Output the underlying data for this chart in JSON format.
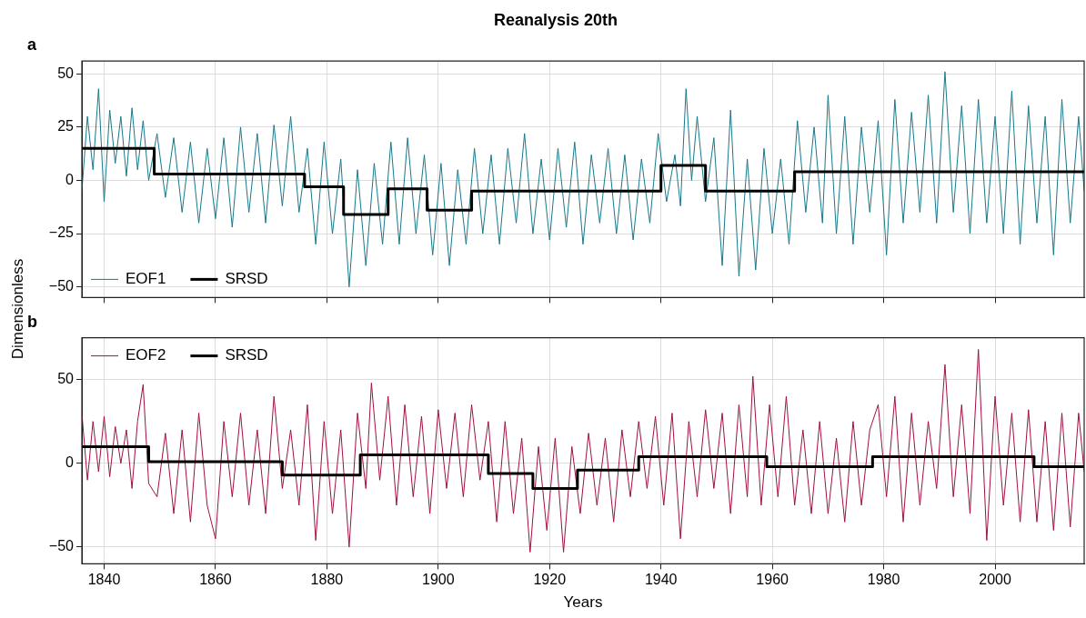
{
  "chart_data": [
    {
      "type": "line",
      "title": "Reanalysis 20th",
      "subtitle": "a",
      "ylabel": "Dimensionless",
      "xlim": [
        1836,
        2016
      ],
      "xticks": [
        1840,
        1860,
        1880,
        1900,
        1920,
        1940,
        1960,
        1980,
        2000
      ],
      "ylim": [
        -55,
        56
      ],
      "yticks": [
        -50,
        -25,
        0,
        25,
        50
      ],
      "grid": true,
      "legend": "bottom left",
      "tick_labels": "y",
      "marker": "none",
      "series": [
        {
          "name": "EOF1",
          "color": "#17788a",
          "x": [
            1836,
            1837,
            1838,
            1839,
            1840,
            1841,
            1842,
            1843,
            1844,
            1845,
            1846,
            1847,
            1848,
            1849.5,
            1851,
            1852.5,
            1854,
            1855.5,
            1857,
            1858.5,
            1860,
            1861.5,
            1863,
            1864.5,
            1866,
            1867.5,
            1869,
            1870.5,
            1872,
            1873.5,
            1875,
            1876.5,
            1878,
            1879.5,
            1881,
            1882.5,
            1884,
            1885.5,
            1887,
            1888.5,
            1890,
            1891.5,
            1893,
            1894.5,
            1896,
            1897.5,
            1899,
            1900.5,
            1902,
            1903.5,
            1905,
            1906.5,
            1908,
            1909.5,
            1911,
            1912.5,
            1914,
            1915.5,
            1917,
            1918.5,
            1920,
            1921.5,
            1923,
            1924.5,
            1926,
            1927.5,
            1929,
            1930.5,
            1932,
            1933.5,
            1935,
            1936.5,
            1938,
            1939.5,
            1941,
            1942.5,
            1943.5,
            1944.5,
            1945.5,
            1946.5,
            1948,
            1949.5,
            1951,
            1952.5,
            1954,
            1955.5,
            1957,
            1958.5,
            1960,
            1961.5,
            1963,
            1964.5,
            1966,
            1967.5,
            1969,
            1970,
            1971.5,
            1973,
            1974.5,
            1976,
            1977.5,
            1979,
            1980.5,
            1982,
            1983.5,
            1985,
            1986.5,
            1988,
            1989.5,
            1991,
            1992.5,
            1994,
            1995.5,
            1997,
            1998.5,
            2000,
            2001.5,
            2003,
            2004.5,
            2006,
            2007.5,
            2009,
            2010.5,
            2012,
            2013.5,
            2015,
            2016
          ],
          "values": [
            -5,
            30,
            5,
            43,
            -10,
            33,
            8,
            30,
            2,
            34,
            5,
            28,
            0,
            22,
            -8,
            20,
            -15,
            18,
            -20,
            15,
            -18,
            20,
            -22,
            25,
            -15,
            22,
            -20,
            26,
            -12,
            30,
            -15,
            15,
            -30,
            18,
            -25,
            10,
            -50,
            5,
            -40,
            8,
            -30,
            18,
            -30,
            20,
            -25,
            12,
            -35,
            8,
            -40,
            5,
            -30,
            15,
            -25,
            12,
            -30,
            15,
            -20,
            22,
            -25,
            10,
            -28,
            15,
            -22,
            18,
            -30,
            12,
            -20,
            15,
            -25,
            12,
            -28,
            10,
            -20,
            22,
            -10,
            12,
            -12,
            43,
            0,
            30,
            -10,
            20,
            -40,
            33,
            -45,
            10,
            -42,
            15,
            -25,
            10,
            -30,
            28,
            -15,
            25,
            -20,
            40,
            -25,
            30,
            -30,
            25,
            -15,
            28,
            -35,
            38,
            -20,
            32,
            -15,
            40,
            -20,
            51,
            -15,
            35,
            -25,
            38,
            -20,
            30,
            -25,
            42,
            -30,
            35,
            -20,
            30,
            -35,
            38,
            -20,
            30,
            -5
          ]
        },
        {
          "name": "SRSD",
          "type": "step",
          "color": "#000000",
          "x": [
            1836,
            1849,
            1876,
            1883,
            1891,
            1898,
            1906,
            1940,
            1948,
            1964,
            2016
          ],
          "values": [
            15,
            3,
            -3,
            -16,
            -4,
            -14,
            -5,
            7,
            -5,
            4,
            4
          ]
        }
      ]
    },
    {
      "type": "line",
      "subtitle": "b",
      "xlabel": "Years",
      "xlim": [
        1836,
        2016
      ],
      "xticks": [
        1840,
        1860,
        1880,
        1900,
        1920,
        1940,
        1960,
        1980,
        2000
      ],
      "ylim": [
        -60,
        75
      ],
      "yticks": [
        -50,
        0,
        50
      ],
      "grid": true,
      "legend": "top left",
      "marker": "none",
      "series": [
        {
          "name": "EOF2",
          "color": "#a0103f",
          "x": [
            1836,
            1837,
            1838,
            1839,
            1840,
            1841,
            1842,
            1843,
            1844,
            1845,
            1846,
            1847,
            1848,
            1849.5,
            1851,
            1852.5,
            1854,
            1855.5,
            1857,
            1858.5,
            1860,
            1861.5,
            1863,
            1864.5,
            1866,
            1867.5,
            1869,
            1870.5,
            1872,
            1873.5,
            1875,
            1876.5,
            1878,
            1879.5,
            1881,
            1882.5,
            1884,
            1885.5,
            1887,
            1888,
            1889.5,
            1891,
            1892.5,
            1894,
            1895.5,
            1897,
            1898.5,
            1900,
            1901.5,
            1903,
            1904.5,
            1906,
            1907.5,
            1909,
            1910.5,
            1912,
            1913.5,
            1915,
            1916.5,
            1918,
            1919.5,
            1921,
            1922.5,
            1924,
            1925.5,
            1927,
            1928.5,
            1930,
            1931.5,
            1933,
            1934.5,
            1936,
            1937.5,
            1939,
            1940.5,
            1942,
            1943.5,
            1945,
            1946.5,
            1948,
            1949.5,
            1951,
            1952.5,
            1954,
            1955.5,
            1956.5,
            1958,
            1959.5,
            1961,
            1962.5,
            1964,
            1965.5,
            1967,
            1968.5,
            1970,
            1971.5,
            1973,
            1974.5,
            1976,
            1977.5,
            1979,
            1980.5,
            1982,
            1983.5,
            1985,
            1986.5,
            1988,
            1989.5,
            1991,
            1992.5,
            1994,
            1995.5,
            1997,
            1998.5,
            2000,
            2001.5,
            2003,
            2004.5,
            2006,
            2007.5,
            2009,
            2010.5,
            2012,
            2013.5,
            2015,
            2016
          ],
          "values": [
            30,
            -10,
            25,
            -5,
            28,
            -8,
            22,
            0,
            20,
            -15,
            25,
            47,
            -12,
            -20,
            18,
            -30,
            20,
            -35,
            30,
            -25,
            -45,
            25,
            -20,
            30,
            -25,
            20,
            -30,
            40,
            -15,
            20,
            -25,
            35,
            -46,
            25,
            -30,
            20,
            -50,
            30,
            -15,
            48,
            -10,
            40,
            -25,
            35,
            -20,
            28,
            -30,
            32,
            -15,
            30,
            -20,
            35,
            -10,
            25,
            -35,
            25,
            -30,
            15,
            -53,
            10,
            -40,
            15,
            -53,
            10,
            -30,
            18,
            -25,
            15,
            -35,
            20,
            -20,
            25,
            -15,
            28,
            -25,
            30,
            -45,
            25,
            -20,
            32,
            -15,
            30,
            -30,
            35,
            -20,
            52,
            -25,
            35,
            -20,
            40,
            -25,
            20,
            -30,
            25,
            -30,
            15,
            -35,
            25,
            -25,
            20,
            35,
            -20,
            40,
            -35,
            30,
            -25,
            25,
            -15,
            59,
            -20,
            35,
            -30,
            68,
            -46,
            40,
            -25,
            30,
            -35,
            32,
            -35,
            25,
            -40,
            30,
            -38,
            30,
            -5
          ]
        },
        {
          "name": "SRSD",
          "type": "step",
          "color": "#000000",
          "x": [
            1836,
            1848,
            1872,
            1886,
            1909,
            1917,
            1925,
            1936,
            1959,
            1978,
            2007,
            2016
          ],
          "values": [
            10,
            1,
            -7,
            5,
            -6,
            -15,
            -4,
            4,
            -2,
            4,
            -2,
            -2
          ]
        }
      ]
    }
  ]
}
